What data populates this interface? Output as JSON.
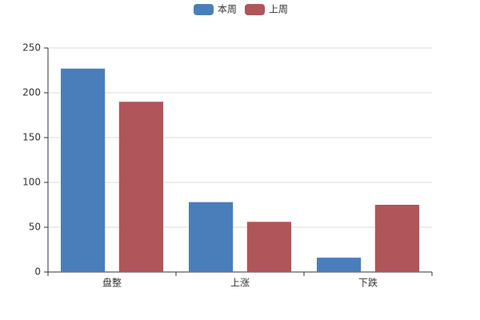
{
  "chart_data": {
    "type": "bar",
    "categories": [
      "盘整",
      "上涨",
      "下跌"
    ],
    "series": [
      {
        "name": "本周",
        "color": "#4a7ebb",
        "values": [
          227,
          78,
          16
        ]
      },
      {
        "name": "上周",
        "color": "#b0555a",
        "values": [
          190,
          56,
          75
        ]
      }
    ],
    "ylim": [
      0,
      250
    ],
    "yticks": [
      0,
      50,
      100,
      150,
      200,
      250
    ],
    "grid": true,
    "legend": "top"
  }
}
